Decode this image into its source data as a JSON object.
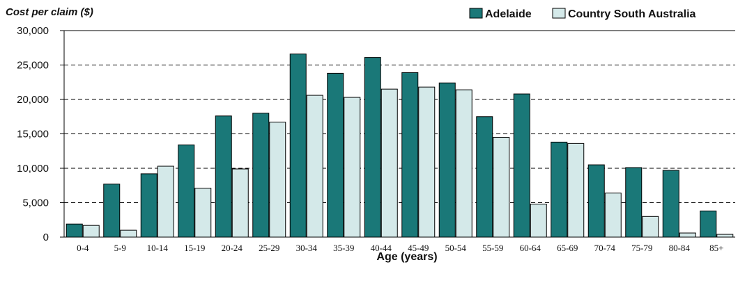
{
  "chart_data": {
    "type": "bar",
    "title": "",
    "ylabel": "Cost per claim ($)",
    "xlabel": "Age (years)",
    "ylim": [
      0,
      30000
    ],
    "yticks": [
      0,
      5000,
      10000,
      15000,
      20000,
      25000,
      30000
    ],
    "ytick_labels": [
      "0",
      "5,000",
      "10,000",
      "15,000",
      "20,000",
      "25,000",
      "30,000"
    ],
    "grid": "horizontal dashed",
    "legend_position": "top-right",
    "categories": [
      "0-4",
      "5-9",
      "10-14",
      "15-19",
      "20-24",
      "25-29",
      "30-34",
      "35-39",
      "40-44",
      "45-49",
      "50-54",
      "55-59",
      "60-64",
      "65-69",
      "70-74",
      "75-79",
      "80-84",
      "85+"
    ],
    "series": [
      {
        "name": "Adelaide",
        "color": "#1a7878",
        "values": [
          1900,
          7700,
          9200,
          13400,
          17600,
          18000,
          26600,
          23800,
          26100,
          23900,
          22400,
          17500,
          20800,
          13800,
          10500,
          10100,
          9700,
          3800
        ]
      },
      {
        "name": "Country South Australia",
        "color": "#d4e9e9",
        "values": [
          1700,
          1000,
          10300,
          7100,
          9900,
          16700,
          20600,
          20300,
          21500,
          21800,
          21400,
          14500,
          4800,
          13600,
          6400,
          3000,
          600,
          400
        ]
      }
    ]
  }
}
